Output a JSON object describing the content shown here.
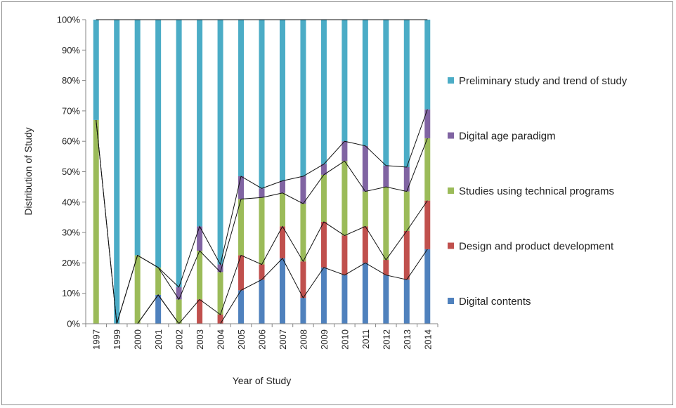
{
  "chart_data": {
    "type": "bar",
    "stacked": "percent",
    "series_lines": true,
    "xlabel": "Year of Study",
    "ylabel": "Distribution of Study",
    "ylim": [
      0,
      100
    ],
    "yticks": [
      "0%",
      "10%",
      "20%",
      "30%",
      "40%",
      "50%",
      "60%",
      "70%",
      "80%",
      "90%",
      "100%"
    ],
    "categories": [
      "1997",
      "1999",
      "2000",
      "2001",
      "2002",
      "2003",
      "2004",
      "2005",
      "2006",
      "2007",
      "2008",
      "2009",
      "2010",
      "2011",
      "2012",
      "2013",
      "2014"
    ],
    "grid": false,
    "legend_position": "right",
    "series": [
      {
        "name": "Digital contents",
        "color": "#4f81bd",
        "values": [
          0,
          0,
          0,
          9.5,
          0,
          0,
          0,
          11,
          14.5,
          21.5,
          8.5,
          18.5,
          16,
          20,
          16,
          14.5,
          24.5
        ]
      },
      {
        "name": "Design and product development",
        "color": "#c0504d",
        "values": [
          0,
          0,
          0,
          0,
          0,
          8,
          3,
          11.5,
          5,
          10.5,
          12,
          15,
          13,
          12,
          5,
          16,
          16
        ]
      },
      {
        "name": "Studies using technical programs",
        "color": "#9bbb59",
        "values": [
          67,
          0,
          22.5,
          9,
          8,
          16,
          14,
          18.5,
          22,
          11,
          19,
          15.5,
          24.5,
          11.5,
          24,
          13,
          20.5
        ]
      },
      {
        "name": "Digital age paradigm",
        "color": "#8064a2",
        "values": [
          0,
          0,
          0,
          0,
          4,
          8,
          2.5,
          7.5,
          3,
          4,
          9,
          3.5,
          6.5,
          15,
          7,
          8,
          9.5
        ]
      },
      {
        "name": "Preliminary study and trend of study",
        "color": "#4bacc6",
        "values": [
          33,
          100,
          77.5,
          81.5,
          88,
          68,
          80.5,
          51.5,
          55.5,
          53,
          51.5,
          47.5,
          40,
          41.5,
          48,
          48.5,
          29.5
        ]
      }
    ]
  }
}
